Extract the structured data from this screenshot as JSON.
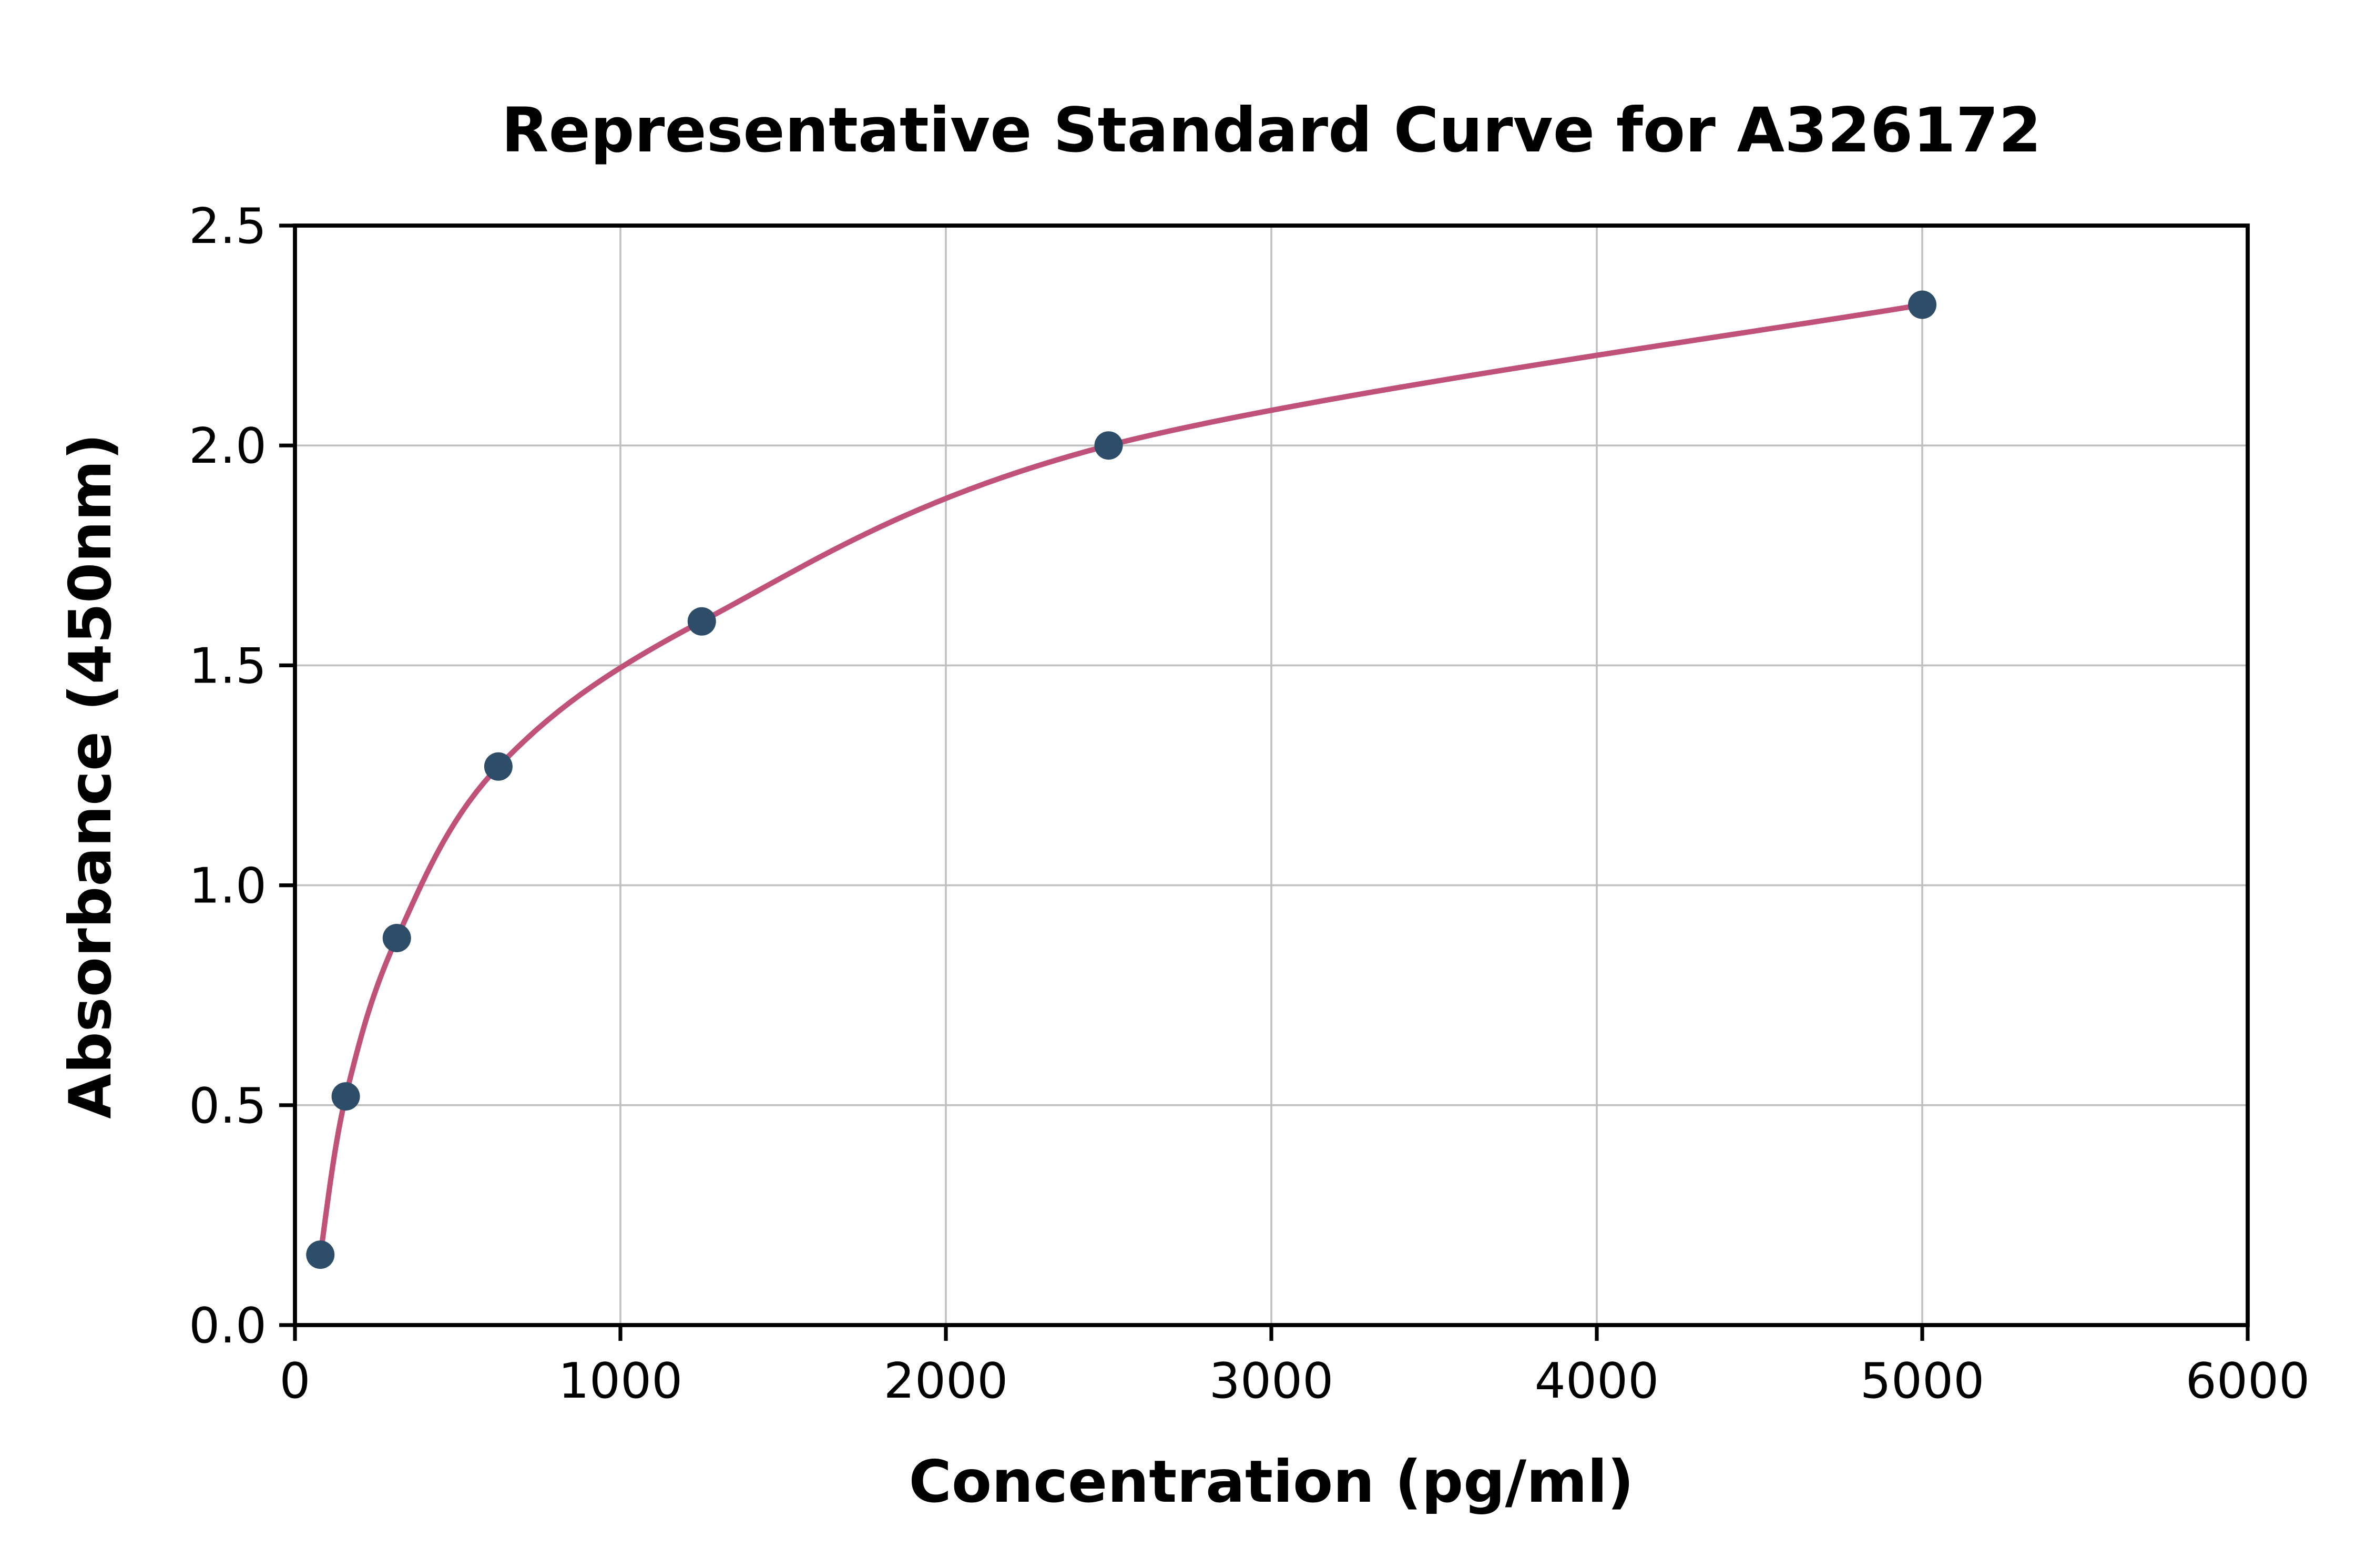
{
  "figure": {
    "title": "Representative Standard Curve for A326172",
    "xlabel": "Concentration (pg/ml)",
    "ylabel": "Absorbance (450nm)"
  },
  "chart_data": {
    "type": "scatter",
    "title": "Representative Standard Curve for A326172",
    "xlabel": "Concentration (pg/ml)",
    "ylabel": "Absorbance (450nm)",
    "xlim": [
      0,
      6000
    ],
    "ylim": [
      0,
      2.5
    ],
    "xticks": [
      0,
      1000,
      2000,
      3000,
      4000,
      5000,
      6000
    ],
    "xtick_labels": [
      "0",
      "1000",
      "2000",
      "3000",
      "4000",
      "5000",
      "6000"
    ],
    "yticks": [
      0,
      0.5,
      1.0,
      1.5,
      2.0,
      2.5
    ],
    "ytick_labels": [
      "0.0",
      "0.5",
      "1.0",
      "1.5",
      "2.0",
      "2.5"
    ],
    "grid": true,
    "legend": "none",
    "series": [
      {
        "name": "standard-curve",
        "points": [
          {
            "x": 78,
            "y": 0.16
          },
          {
            "x": 156,
            "y": 0.52
          },
          {
            "x": 313,
            "y": 0.88
          },
          {
            "x": 625,
            "y": 1.27
          },
          {
            "x": 1250,
            "y": 1.6
          },
          {
            "x": 2500,
            "y": 2.0
          },
          {
            "x": 5000,
            "y": 2.32
          }
        ]
      }
    ],
    "curve_color": "#c0527a",
    "point_color": "#2e4d68",
    "grid_color": "#c0c0c0",
    "axis_color": "#000000"
  }
}
